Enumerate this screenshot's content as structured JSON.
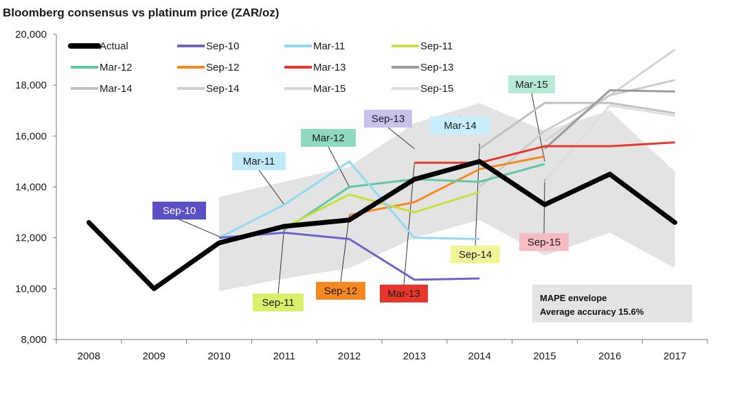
{
  "chart_data": {
    "type": "line",
    "title": "Bloomberg consensus vs platinum price (ZAR/oz)",
    "xlabel": "",
    "ylabel": "",
    "categories": [
      "2008",
      "2009",
      "2010",
      "2011",
      "2012",
      "2013",
      "2014",
      "2015",
      "2016",
      "2017"
    ],
    "ylim": [
      8000,
      20000
    ],
    "yticks": [
      "8,000",
      "10,000",
      "12,000",
      "14,000",
      "16,000",
      "18,000",
      "20,000"
    ],
    "yticks_values": [
      8000,
      10000,
      12000,
      14000,
      16000,
      18000,
      20000
    ],
    "grid": false,
    "legend_position": "top",
    "envelope": {
      "x": [
        "2010",
        "2011",
        "2012",
        "2013",
        "2014",
        "2015",
        "2016",
        "2017"
      ],
      "upper": [
        13600,
        14200,
        14800,
        16500,
        17300,
        16200,
        17000,
        14600
      ],
      "lower": [
        9900,
        10400,
        10800,
        12000,
        12700,
        11300,
        12200,
        10800
      ]
    },
    "series": [
      {
        "name": "Actual",
        "color": "#000000",
        "width": 7,
        "x": [
          "2008",
          "2009",
          "2010",
          "2011",
          "2012",
          "2013",
          "2014",
          "2015",
          "2016",
          "2017"
        ],
        "values": [
          12600,
          10000,
          11800,
          12450,
          12700,
          14300,
          15000,
          13300,
          14500,
          12600
        ]
      },
      {
        "name": "Sep-10",
        "color": "#6b63c9",
        "width": 3,
        "x": [
          "2010",
          "2011",
          "2012",
          "2013",
          "2014"
        ],
        "values": [
          12000,
          12200,
          11950,
          10350,
          10400
        ]
      },
      {
        "name": "Mar-11",
        "color": "#8fd9f2",
        "width": 3,
        "x": [
          "2010",
          "2011",
          "2012",
          "2013",
          "2014"
        ],
        "values": [
          12000,
          13300,
          15000,
          12000,
          11950
        ]
      },
      {
        "name": "Sep-11",
        "color": "#c8de3c",
        "width": 3,
        "x": [
          "2011",
          "2012",
          "2013",
          "2014"
        ],
        "values": [
          12400,
          13700,
          13000,
          13800
        ]
      },
      {
        "name": "Mar-12",
        "color": "#5fc6a6",
        "width": 3,
        "x": [
          "2011",
          "2012",
          "2013",
          "2014",
          "2015"
        ],
        "values": [
          12300,
          14000,
          14300,
          14200,
          14900
        ]
      },
      {
        "name": "Sep-12",
        "color": "#f5891f",
        "width": 3,
        "x": [
          "2012",
          "2013",
          "2014",
          "2015"
        ],
        "values": [
          12900,
          13400,
          14700,
          15200
        ]
      },
      {
        "name": "Mar-13",
        "color": "#e8372a",
        "width": 3,
        "x": [
          "2013",
          "2014",
          "2015",
          "2016",
          "2017"
        ],
        "values": [
          14950,
          14950,
          15600,
          15600,
          15750
        ]
      },
      {
        "name": "Sep-13",
        "color": "#9a9a9a",
        "width": 3,
        "x": [
          "2015",
          "2016",
          "2017"
        ],
        "values": [
          15500,
          17800,
          17750
        ]
      },
      {
        "name": "Mar-14",
        "color": "#c0c0c0",
        "width": 3,
        "x": [
          "2014",
          "2015",
          "2016",
          "2017"
        ],
        "values": [
          15500,
          17300,
          17300,
          16900
        ]
      },
      {
        "name": "Sep-14",
        "color": "#cccccc",
        "width": 3,
        "x": [
          "2014",
          "2015",
          "2016",
          "2017"
        ],
        "values": [
          14000,
          16200,
          17600,
          18200
        ]
      },
      {
        "name": "Mar-15",
        "color": "#d4d4d4",
        "width": 3,
        "x": [
          "2015",
          "2016",
          "2017"
        ],
        "values": [
          15800,
          17600,
          19400
        ]
      },
      {
        "name": "Sep-15",
        "color": "#dddddd",
        "width": 3,
        "x": [
          "2015",
          "2016",
          "2017"
        ],
        "values": [
          14200,
          17200,
          16800
        ]
      }
    ],
    "callouts": [
      {
        "label": "Sep-10",
        "bg": "#5a50c4",
        "fg": "#ffffff",
        "anchor_x": "2010",
        "anchor_y": 12050
      },
      {
        "label": "Mar-11",
        "bg": "#bfe9f8",
        "fg": "#1a1a1a",
        "anchor_x": "2011",
        "anchor_y": 13300
      },
      {
        "label": "Mar-12",
        "bg": "#8fd9be",
        "fg": "#1a1a1a",
        "anchor_x": "2012",
        "anchor_y": 14000
      },
      {
        "label": "Sep-13",
        "bg": "#c9c2ee",
        "fg": "#1a1a1a",
        "anchor_x": "2013",
        "anchor_y": 15500
      },
      {
        "label": "Mar-14",
        "bg": "#c9eefb",
        "fg": "#1a1a1a",
        "anchor_x": "2014",
        "anchor_y": 16600
      },
      {
        "label": "Mar-15",
        "bg": "#b7e9d7",
        "fg": "#1a1a1a",
        "anchor_x": "2015",
        "anchor_y": 15000
      },
      {
        "label": "Sep-11",
        "bg": "#dcef6a",
        "fg": "#1a1a1a",
        "anchor_x": "2011",
        "anchor_y": 12400
      },
      {
        "label": "Sep-12",
        "bg": "#f5891f",
        "fg": "#1a1a1a",
        "anchor_x": "2012",
        "anchor_y": 12900
      },
      {
        "label": "Mar-13",
        "bg": "#e8372a",
        "fg": "#1a1a1a",
        "anchor_x": "2013",
        "anchor_y": 14950
      },
      {
        "label": "Sep-14",
        "bg": "#f0f59a",
        "fg": "#1a1a1a",
        "anchor_x": "2014",
        "anchor_y": 15700
      },
      {
        "label": "Sep-15",
        "bg": "#f6bcc3",
        "fg": "#1a1a1a",
        "anchor_x": "2015",
        "anchor_y": 14300
      }
    ],
    "annotation": {
      "line1": "MAPE envelope",
      "line2": "Average accuracy 15.6%",
      "bg": "#e4e4e4"
    }
  }
}
